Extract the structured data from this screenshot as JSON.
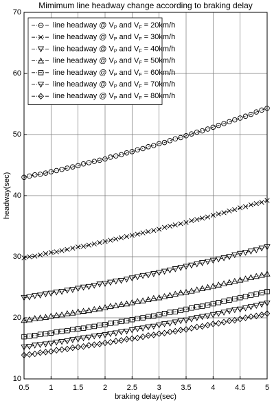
{
  "chart_data": {
    "type": "line",
    "title": "Mimimum line headway change according to braking delay",
    "x_label": "braking delay(sec)",
    "y_label": "headway(sec)",
    "x": [
      0.5,
      0.6,
      0.7,
      0.8,
      0.9,
      1.0,
      1.1,
      1.2,
      1.3,
      1.4,
      1.5,
      1.6,
      1.7,
      1.8,
      1.9,
      2.0,
      2.1,
      2.2,
      2.3,
      2.4,
      2.5,
      2.6,
      2.7,
      2.8,
      2.9,
      3.0,
      3.1,
      3.2,
      3.3,
      3.4,
      3.5,
      3.6,
      3.7,
      3.8,
      3.9,
      4.0,
      4.1,
      4.2,
      4.3,
      4.4,
      4.5,
      4.6,
      4.7,
      4.8,
      4.9,
      5.0
    ],
    "xlim": [
      0.5,
      5
    ],
    "xticks": [
      0.5,
      1,
      1.5,
      2,
      2.5,
      3,
      3.5,
      4,
      4.5,
      5
    ],
    "ylim": [
      10,
      70
    ],
    "yticks": [
      10,
      20,
      30,
      40,
      50,
      60,
      70
    ],
    "grid": true,
    "legend_position": "upper-left",
    "series": [
      {
        "name": "line headway @ VP and VF = 20km/h",
        "color": "#000000",
        "marker": "circle",
        "values": [
          43.0,
          43.2,
          43.4,
          43.5,
          43.7,
          43.9,
          44.1,
          44.3,
          44.5,
          44.7,
          44.9,
          45.2,
          45.4,
          45.6,
          45.8,
          46.0,
          46.3,
          46.5,
          46.7,
          47.0,
          47.2,
          47.5,
          47.7,
          48.0,
          48.2,
          48.5,
          48.7,
          49.0,
          49.3,
          49.5,
          49.8,
          50.1,
          50.4,
          50.6,
          50.9,
          51.2,
          51.5,
          51.8,
          52.1,
          52.4,
          52.7,
          53.0,
          53.3,
          53.7,
          54.0,
          54.3
        ]
      },
      {
        "name": "line headway @ VP and VF = 30km/h",
        "color": "#000000",
        "marker": "x",
        "values": [
          29.8,
          30.0,
          30.1,
          30.3,
          30.5,
          30.7,
          30.8,
          31.0,
          31.2,
          31.4,
          31.6,
          31.7,
          31.9,
          32.1,
          32.3,
          32.5,
          32.7,
          32.9,
          33.1,
          33.3,
          33.5,
          33.7,
          33.9,
          34.1,
          34.3,
          34.5,
          34.8,
          35.0,
          35.2,
          35.4,
          35.6,
          35.9,
          36.1,
          36.3,
          36.5,
          36.8,
          37.0,
          37.2,
          37.5,
          37.7,
          38.0,
          38.2,
          38.5,
          38.7,
          38.9,
          39.2
        ]
      },
      {
        "name": "line headway @ VP and VF = 40km/h",
        "color": "#000000",
        "marker": "triangle-down",
        "values": [
          23.3,
          23.4,
          23.6,
          23.7,
          23.9,
          24.0,
          24.2,
          24.3,
          24.5,
          24.6,
          24.8,
          25.0,
          25.1,
          25.3,
          25.5,
          25.6,
          25.8,
          26.0,
          26.1,
          26.3,
          26.5,
          26.7,
          26.9,
          27.0,
          27.2,
          27.4,
          27.6,
          27.8,
          28.0,
          28.2,
          28.4,
          28.6,
          28.8,
          29.0,
          29.2,
          29.4,
          29.6,
          29.8,
          30.0,
          30.3,
          30.5,
          30.7,
          30.9,
          31.1,
          31.4,
          31.6
        ]
      },
      {
        "name": "line headway @ VP and VF = 50km/h",
        "color": "#000000",
        "marker": "triangle-up",
        "values": [
          19.6,
          19.7,
          19.9,
          20.0,
          20.1,
          20.3,
          20.4,
          20.5,
          20.7,
          20.8,
          21.0,
          21.1,
          21.2,
          21.4,
          21.5,
          21.7,
          21.9,
          22.0,
          22.2,
          22.3,
          22.5,
          22.7,
          22.8,
          23.0,
          23.2,
          23.3,
          23.5,
          23.7,
          23.9,
          24.1,
          24.2,
          24.4,
          24.6,
          24.8,
          25.0,
          25.2,
          25.4,
          25.6,
          25.8,
          26.0,
          26.2,
          26.4,
          26.6,
          26.8,
          27.0,
          27.2
        ]
      },
      {
        "name": "line headway @ VP and VF = 60km/h",
        "color": "#000000",
        "marker": "square",
        "values": [
          16.9,
          17.0,
          17.1,
          17.3,
          17.4,
          17.5,
          17.7,
          17.8,
          17.9,
          18.1,
          18.2,
          18.3,
          18.5,
          18.6,
          18.8,
          18.9,
          19.1,
          19.2,
          19.4,
          19.5,
          19.7,
          19.9,
          20.0,
          20.2,
          20.3,
          20.5,
          20.7,
          20.9,
          21.0,
          21.2,
          21.4,
          21.6,
          21.8,
          21.9,
          22.1,
          22.3,
          22.5,
          22.7,
          22.9,
          23.1,
          23.3,
          23.5,
          23.7,
          23.9,
          24.1,
          24.3
        ]
      },
      {
        "name": "line headway @ VP and VF = 70km/h",
        "color": "#000000",
        "marker": "triangle-down",
        "values": [
          15.2,
          15.3,
          15.5,
          15.6,
          15.7,
          15.8,
          16.0,
          16.1,
          16.2,
          16.4,
          16.5,
          16.7,
          16.8,
          17.0,
          17.1,
          17.2,
          17.4,
          17.5,
          17.7,
          17.8,
          18.0,
          18.2,
          18.3,
          18.5,
          18.6,
          18.8,
          19.0,
          19.1,
          19.3,
          19.5,
          19.6,
          19.8,
          20.0,
          20.2,
          20.3,
          20.5,
          20.7,
          20.9,
          21.1,
          21.3,
          21.4,
          21.6,
          21.8,
          22.0,
          22.2,
          22.4
        ]
      },
      {
        "name": "line headway @ VP and VF = 80km/h",
        "color": "#000000",
        "marker": "diamond",
        "values": [
          13.9,
          14.0,
          14.1,
          14.3,
          14.4,
          14.5,
          14.7,
          14.8,
          14.9,
          15.1,
          15.2,
          15.3,
          15.5,
          15.6,
          15.7,
          15.9,
          16.0,
          16.2,
          16.3,
          16.5,
          16.6,
          16.7,
          16.9,
          17.1,
          17.2,
          17.4,
          17.5,
          17.7,
          17.8,
          18.0,
          18.1,
          18.3,
          18.5,
          18.6,
          18.8,
          19.0,
          19.1,
          19.3,
          19.5,
          19.6,
          19.8,
          20.0,
          20.2,
          20.3,
          20.5,
          20.7
        ]
      }
    ]
  }
}
